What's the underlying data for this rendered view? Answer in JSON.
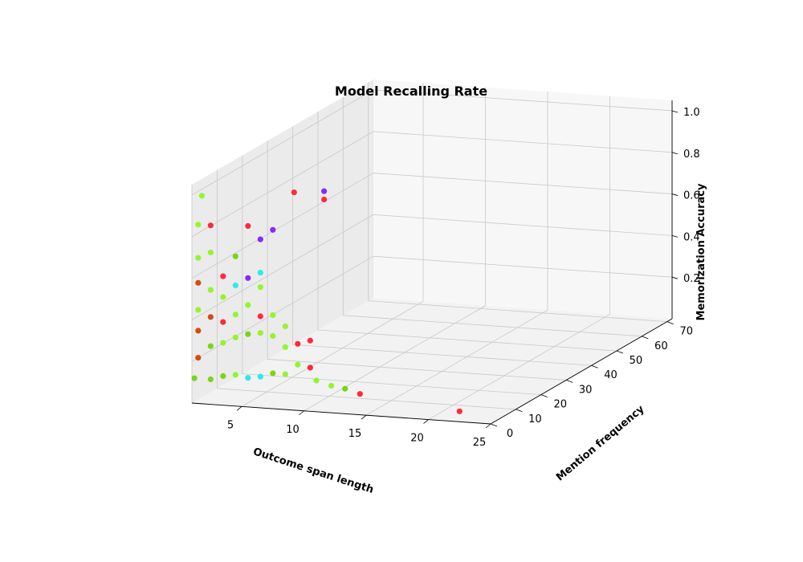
{
  "chart_data": {
    "type": "scatter",
    "projection": "3d",
    "title": "Model Recalling Rate",
    "xlabel": "Outcome span length",
    "ylabel": "Mention frequency",
    "zlabel": "Memorization Accuracy",
    "xlim": [
      1,
      25
    ],
    "ylim": [
      0,
      72
    ],
    "zlim": [
      0,
      1.05
    ],
    "xticks": [
      "5",
      "10",
      "15",
      "20",
      "25"
    ],
    "yticks": [
      "0",
      "10",
      "20",
      "30",
      "40",
      "50",
      "60",
      "70"
    ],
    "zticks": [
      "0.2",
      "0.4",
      "0.6",
      "0.8",
      "1.0"
    ],
    "grid": true,
    "colors": {
      "red": "#ff1a2e",
      "darkorange": "#d43d00",
      "lime": "#8cf51f",
      "green": "#6fd400",
      "cyan": "#1fe8e8",
      "violet": "#7a1aff"
    },
    "points": [
      {
        "x": 1.8,
        "y": 0,
        "z": 1.0,
        "c": "lime"
      },
      {
        "x": 1.5,
        "y": 0,
        "z": 0.86,
        "c": "lime"
      },
      {
        "x": 1.5,
        "y": 0,
        "z": 0.7,
        "c": "lime"
      },
      {
        "x": 1.5,
        "y": 0,
        "z": 0.58,
        "c": "darkorange"
      },
      {
        "x": 1.5,
        "y": 0,
        "z": 0.45,
        "c": "lime"
      },
      {
        "x": 1.5,
        "y": 0,
        "z": 0.35,
        "c": "darkorange"
      },
      {
        "x": 1.5,
        "y": 0,
        "z": 0.22,
        "c": "darkorange"
      },
      {
        "x": 1.2,
        "y": 0,
        "z": 0.12,
        "c": "green"
      },
      {
        "x": 2.5,
        "y": 0,
        "z": 0.86,
        "c": "red"
      },
      {
        "x": 2.5,
        "y": 0,
        "z": 0.73,
        "c": "lime"
      },
      {
        "x": 2.5,
        "y": 0,
        "z": 0.55,
        "c": "lime"
      },
      {
        "x": 2.5,
        "y": 0,
        "z": 0.42,
        "c": "darkorange"
      },
      {
        "x": 2.5,
        "y": 0,
        "z": 0.28,
        "c": "green"
      },
      {
        "x": 2.5,
        "y": 0,
        "z": 0.12,
        "c": "green"
      },
      {
        "x": 3.5,
        "y": 0,
        "z": 0.62,
        "c": "red"
      },
      {
        "x": 3.5,
        "y": 0,
        "z": 0.52,
        "c": "lime"
      },
      {
        "x": 3.5,
        "y": 0,
        "z": 0.4,
        "c": "red"
      },
      {
        "x": 3.5,
        "y": 0,
        "z": 0.3,
        "c": "lime"
      },
      {
        "x": 3.5,
        "y": 0,
        "z": 0.14,
        "c": "green"
      },
      {
        "x": 4.5,
        "y": 0,
        "z": 0.72,
        "c": "green"
      },
      {
        "x": 4.5,
        "y": 0,
        "z": 0.58,
        "c": "cyan"
      },
      {
        "x": 4.5,
        "y": 0,
        "z": 0.44,
        "c": "lime"
      },
      {
        "x": 4.5,
        "y": 0,
        "z": 0.33,
        "c": "lime"
      },
      {
        "x": 4.5,
        "y": 0,
        "z": 0.15,
        "c": "lime"
      },
      {
        "x": 5.5,
        "y": 0,
        "z": 0.87,
        "c": "red"
      },
      {
        "x": 5.5,
        "y": 0,
        "z": 0.62,
        "c": "violet"
      },
      {
        "x": 5.5,
        "y": 0,
        "z": 0.49,
        "c": "lime"
      },
      {
        "x": 5.5,
        "y": 0,
        "z": 0.35,
        "c": "green"
      },
      {
        "x": 5.5,
        "y": 0,
        "z": 0.14,
        "c": "cyan"
      },
      {
        "x": 6.5,
        "y": 0,
        "z": 0.81,
        "c": "violet"
      },
      {
        "x": 6.5,
        "y": 0,
        "z": 0.65,
        "c": "cyan"
      },
      {
        "x": 6.5,
        "y": 0,
        "z": 0.58,
        "c": "lime"
      },
      {
        "x": 6.5,
        "y": 0,
        "z": 0.44,
        "c": "red"
      },
      {
        "x": 6.5,
        "y": 0,
        "z": 0.36,
        "c": "lime"
      },
      {
        "x": 6.5,
        "y": 0,
        "z": 0.15,
        "c": "cyan"
      },
      {
        "x": 7.5,
        "y": 0,
        "z": 0.86,
        "c": "violet"
      },
      {
        "x": 7.5,
        "y": 0,
        "z": 0.45,
        "c": "lime"
      },
      {
        "x": 7.5,
        "y": 0,
        "z": 0.35,
        "c": "lime"
      },
      {
        "x": 7.5,
        "y": 0,
        "z": 0.17,
        "c": "green"
      },
      {
        "x": 8.5,
        "y": 0,
        "z": 0.4,
        "c": "lime"
      },
      {
        "x": 8.5,
        "y": 0,
        "z": 0.3,
        "c": "lime"
      },
      {
        "x": 8.5,
        "y": 0,
        "z": 0.17,
        "c": "lime"
      },
      {
        "x": 9.5,
        "y": 0,
        "z": 0.32,
        "c": "red"
      },
      {
        "x": 9.5,
        "y": 0,
        "z": 0.22,
        "c": "lime"
      },
      {
        "x": 10.5,
        "y": 0,
        "z": 0.34,
        "c": "red"
      },
      {
        "x": 10.5,
        "y": 0,
        "z": 0.21,
        "c": "red"
      },
      {
        "x": 11,
        "y": 0,
        "z": 0.15,
        "c": "lime"
      },
      {
        "x": 12.2,
        "y": 0,
        "z": 0.13,
        "c": "lime"
      },
      {
        "x": 13.3,
        "y": 0,
        "z": 0.12,
        "c": "green"
      },
      {
        "x": 14.5,
        "y": 0,
        "z": 0.1,
        "c": "red"
      },
      {
        "x": 22.5,
        "y": 0,
        "z": 0.05,
        "c": "red"
      },
      {
        "x": 10,
        "y": 8,
        "z": 1.0,
        "c": "violet"
      },
      {
        "x": 10,
        "y": 8,
        "z": 0.96,
        "c": "red"
      },
      {
        "x": 8,
        "y": 6,
        "z": 1.0,
        "c": "red"
      }
    ]
  }
}
